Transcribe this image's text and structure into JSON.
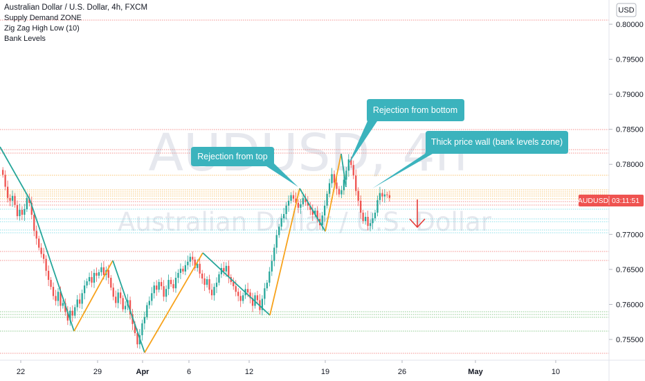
{
  "header": {
    "title": "Australian Dollar / U.S. Dollar, 4h, FXCM",
    "indicators": [
      "Supply Demand ZONE",
      "Zig Zag High Low (10)",
      "Bank Levels"
    ]
  },
  "watermark": {
    "symbol": "AUDUSD, 4h",
    "name": "Australian Dollar / U.S. Dollar"
  },
  "price_axis": {
    "currency": "USD",
    "badge_symbol": "AUDUSD",
    "badge_countdown": "03:11:51"
  },
  "annotations": {
    "top": "Rejection from top",
    "bottom": "Rejection from bottom",
    "wall": "Thick price wall (bank levels zone)"
  },
  "colors": {
    "up": "#26a69a",
    "down": "#ef5350",
    "zigzag_up": "#f7a21b",
    "zigzag_down": "#26a69a",
    "annotation_bg": "#3bb3bd",
    "level_red": "#ef5350",
    "level_orange": "#f7a21b",
    "level_green": "#4caf50",
    "level_cyan": "#4dd0e1",
    "arrow": "#e53935",
    "badge": "#ef5350"
  },
  "chart_data": {
    "type": "candlestick",
    "title": "Australian Dollar / U.S. Dollar, 4h, FXCM",
    "symbol": "AUDUSD",
    "timeframe": "4h",
    "x_ticks": [
      "22",
      "29",
      "Apr",
      "6",
      "12",
      "19",
      "26",
      "May",
      "10"
    ],
    "y_ticks": [
      "0.80000",
      "0.79500",
      "0.79000",
      "0.78500",
      "0.78000",
      "0.77500",
      "0.77000",
      "0.76500",
      "0.76000",
      "0.75500"
    ],
    "ylim": [
      0.7525,
      0.8025
    ],
    "last_price": 0.7752,
    "candle_closes": [
      0.7785,
      0.7768,
      0.7752,
      0.7748,
      0.7755,
      0.7742,
      0.7726,
      0.7735,
      0.7728,
      0.7736,
      0.7752,
      0.7745,
      0.7728,
      0.7705,
      0.7694,
      0.7681,
      0.7672,
      0.7665,
      0.7648,
      0.7635,
      0.7625,
      0.7612,
      0.7605,
      0.7618,
      0.7598,
      0.7602,
      0.7589,
      0.7577,
      0.7591,
      0.7584,
      0.7596,
      0.7607,
      0.7601,
      0.7616,
      0.7627,
      0.7633,
      0.7639,
      0.7631,
      0.7645,
      0.7641,
      0.7646,
      0.7653,
      0.7642,
      0.7649,
      0.7638,
      0.7624,
      0.7611,
      0.7602,
      0.7617,
      0.7609,
      0.7593,
      0.7598,
      0.7606,
      0.7586,
      0.7572,
      0.7559,
      0.7543,
      0.7556,
      0.7573,
      0.7582,
      0.7599,
      0.7605,
      0.7616,
      0.7627,
      0.7621,
      0.7632,
      0.7626,
      0.7611,
      0.7622,
      0.7635,
      0.7629,
      0.7623,
      0.7638,
      0.7645,
      0.7651,
      0.7647,
      0.7656,
      0.7661,
      0.7668,
      0.7664,
      0.7652,
      0.7658,
      0.7644,
      0.7637,
      0.7628,
      0.7636,
      0.7621,
      0.7613,
      0.7625,
      0.7631,
      0.7643,
      0.7652,
      0.7647,
      0.7655,
      0.7639,
      0.7632,
      0.7626,
      0.7618,
      0.7612,
      0.7605,
      0.7613,
      0.7622,
      0.7617,
      0.7609,
      0.7598,
      0.7613,
      0.7606,
      0.7592,
      0.7608,
      0.7623,
      0.7631,
      0.7647,
      0.7662,
      0.7681,
      0.7699,
      0.7711,
      0.7723,
      0.7729,
      0.7741,
      0.7748,
      0.7756,
      0.7751,
      0.7745,
      0.7738,
      0.7743,
      0.7752,
      0.7746,
      0.7741,
      0.7735,
      0.7728,
      0.7734,
      0.7722,
      0.7713,
      0.7727,
      0.7741,
      0.7758,
      0.7773,
      0.7786,
      0.7774,
      0.7765,
      0.7757,
      0.7763,
      0.7778,
      0.7791,
      0.7807,
      0.7799,
      0.7784,
      0.7762,
      0.7748,
      0.7731,
      0.7719,
      0.7725,
      0.7712,
      0.7716,
      0.7723,
      0.7731,
      0.7749,
      0.7759,
      0.7754,
      0.7757,
      0.7756,
      0.7752
    ]
  }
}
